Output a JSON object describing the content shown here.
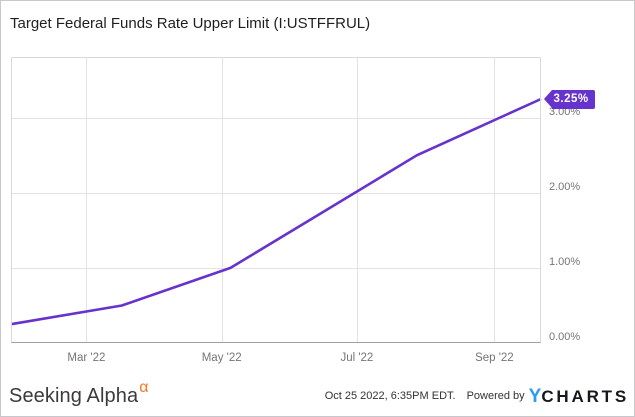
{
  "chart_data": {
    "type": "line",
    "title": "Target Federal Funds Rate Upper Limit (I:USTFFRUL)",
    "series": [
      {
        "name": "Target Federal Funds Rate Upper Limit",
        "color": "#6633cc",
        "points": [
          {
            "date": "2022-01-26",
            "value": 0.25
          },
          {
            "date": "2022-03-17",
            "value": 0.5
          },
          {
            "date": "2022-05-05",
            "value": 1.0
          },
          {
            "date": "2022-06-16",
            "value": 1.75
          },
          {
            "date": "2022-07-28",
            "value": 2.5
          },
          {
            "date": "2022-09-22",
            "value": 3.25
          }
        ]
      }
    ],
    "x_ticks": [
      {
        "label": "Mar '22",
        "date": "2022-03-01"
      },
      {
        "label": "May '22",
        "date": "2022-05-01"
      },
      {
        "label": "Jul '22",
        "date": "2022-07-01"
      },
      {
        "label": "Sep '22",
        "date": "2022-09-01"
      }
    ],
    "y_ticks": [
      {
        "label": "0.00%",
        "value": 0
      },
      {
        "label": "1.00%",
        "value": 1
      },
      {
        "label": "2.00%",
        "value": 2
      },
      {
        "label": "3.00%",
        "value": 3
      }
    ],
    "x_domain": [
      "2022-01-26",
      "2022-09-22"
    ],
    "y_domain": [
      0,
      3.81
    ],
    "grid": true,
    "legend_position": "none",
    "last_value_badge": {
      "label": "3.25%",
      "color": "#6633cc",
      "text_color": "#ffffff"
    }
  },
  "footer": {
    "brand": {
      "text": "Seeking Alpha",
      "alpha_symbol": "α",
      "alpha_color": "#ff7420"
    },
    "timestamp": "Oct 25 2022, 6:35PM EDT.",
    "powered_by": "Powered by",
    "ycharts": {
      "y_letter": "Y",
      "rest": "CHARTS",
      "y_color": "#2d9bf0"
    }
  }
}
